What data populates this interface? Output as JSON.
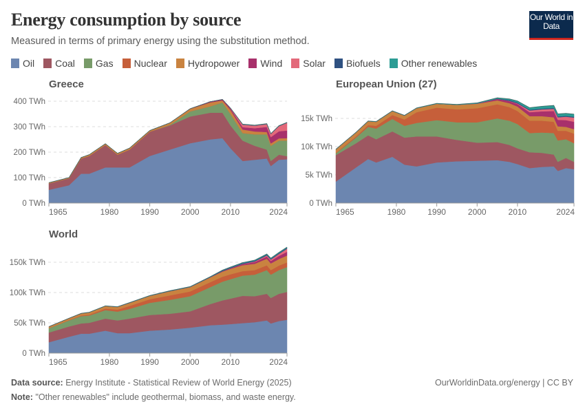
{
  "header": {
    "title": "Energy consumption by source",
    "subtitle": "Measured in terms of primary energy using the substitution method.",
    "logo_text": "Our World in Data"
  },
  "legend": [
    {
      "label": "Oil",
      "color": "#6c86b0"
    },
    {
      "label": "Coal",
      "color": "#9e5761"
    },
    {
      "label": "Gas",
      "color": "#789b69"
    },
    {
      "label": "Nuclear",
      "color": "#c65f3a"
    },
    {
      "label": "Hydropower",
      "color": "#c98340"
    },
    {
      "label": "Wind",
      "color": "#a8306b"
    },
    {
      "label": "Solar",
      "color": "#e3697a"
    },
    {
      "label": "Biofuels",
      "color": "#2f5181"
    },
    {
      "label": "Other renewables",
      "color": "#2c9c94"
    }
  ],
  "chart_data": [
    {
      "type": "area",
      "stacked": true,
      "title": "Greece",
      "x": [
        1965,
        1970,
        1973,
        1975,
        1979,
        1982,
        1985,
        1990,
        1995,
        2000,
        2005,
        2008,
        2010,
        2013,
        2016,
        2019,
        2020,
        2022,
        2024
      ],
      "xticks": [
        "1965",
        "1980",
        "1990",
        "2000",
        "2010",
        "2024"
      ],
      "yticks": [
        {
          "value": 0,
          "label": "0 TWh"
        },
        {
          "value": 100,
          "label": "100 TWh"
        },
        {
          "value": 200,
          "label": "200 TWh"
        },
        {
          "value": 300,
          "label": "300 TWh"
        },
        {
          "value": 400,
          "label": "400 TWh"
        }
      ],
      "ylim": [
        0,
        420
      ],
      "grid": "horizontal-dashed",
      "series": [
        {
          "name": "Oil",
          "values": [
            52,
            70,
            115,
            115,
            140,
            140,
            140,
            185,
            210,
            235,
            250,
            255,
            215,
            165,
            170,
            175,
            145,
            170,
            172
          ]
        },
        {
          "name": "Coal",
          "values": [
            25,
            27,
            60,
            70,
            88,
            50,
            70,
            95,
            95,
            105,
            105,
            100,
            90,
            80,
            55,
            35,
            20,
            20,
            12
          ]
        },
        {
          "name": "Gas",
          "values": [
            0,
            0,
            0,
            0,
            0,
            0,
            0,
            0,
            2,
            20,
            25,
            40,
            45,
            30,
            45,
            60,
            60,
            55,
            62
          ]
        },
        {
          "name": "Nuclear",
          "values": [
            0,
            0,
            0,
            0,
            0,
            0,
            0,
            0,
            0,
            0,
            0,
            0,
            0,
            0,
            0,
            0,
            0,
            0,
            0
          ]
        },
        {
          "name": "Hydropower",
          "values": [
            3,
            3,
            4,
            5,
            5,
            5,
            6,
            5,
            8,
            10,
            15,
            8,
            15,
            14,
            11,
            9,
            9,
            9,
            9
          ]
        },
        {
          "name": "Wind",
          "values": [
            0,
            0,
            0,
            0,
            0,
            0,
            0,
            0,
            0,
            0.5,
            3,
            4,
            6,
            9,
            13,
            20,
            25,
            28,
            30
          ]
        },
        {
          "name": "Solar",
          "values": [
            0,
            0,
            0,
            0,
            0,
            0,
            0,
            0,
            0,
            0,
            0,
            0,
            1,
            10,
            10,
            11,
            12,
            20,
            30
          ]
        },
        {
          "name": "Biofuels",
          "values": [
            0,
            0,
            0,
            0,
            0,
            0,
            0,
            0,
            0,
            0,
            0,
            0,
            1,
            1,
            1,
            1,
            1,
            1,
            1
          ]
        },
        {
          "name": "Other renewables",
          "values": [
            0,
            0,
            0,
            0,
            0,
            0,
            0,
            0,
            0,
            0,
            0,
            0,
            0,
            1,
            1,
            1,
            1,
            1,
            1
          ]
        }
      ]
    },
    {
      "type": "area",
      "stacked": true,
      "title": "European Union (27)",
      "x": [
        1965,
        1970,
        1973,
        1975,
        1979,
        1982,
        1985,
        1990,
        1995,
        2000,
        2005,
        2008,
        2010,
        2013,
        2016,
        2019,
        2020,
        2022,
        2024
      ],
      "xticks": [
        "1965",
        "1980",
        "1990",
        "2000",
        "2010",
        "2024"
      ],
      "yticks": [
        {
          "value": 0,
          "label": "0 TWh"
        },
        {
          "value": 5000,
          "label": "5k TWh"
        },
        {
          "value": 10000,
          "label": "10k TWh"
        },
        {
          "value": 15000,
          "label": "15k TWh"
        }
      ],
      "ylim": [
        0,
        19000
      ],
      "grid": "horizontal-dashed",
      "series": [
        {
          "name": "Oil",
          "values": [
            3800,
            6300,
            7800,
            7200,
            8200,
            6800,
            6500,
            7200,
            7400,
            7500,
            7600,
            7300,
            6900,
            6200,
            6400,
            6500,
            5700,
            6200,
            6000
          ]
        },
        {
          "name": "Coal",
          "values": [
            4700,
            4300,
            4200,
            4100,
            4500,
            4800,
            5300,
            4600,
            3800,
            3200,
            3200,
            3000,
            2800,
            2800,
            2500,
            2100,
            1600,
            1800,
            1300
          ]
        },
        {
          "name": "Gas",
          "values": [
            300,
            1000,
            1500,
            1900,
            2200,
            2100,
            2400,
            2900,
            3100,
            3600,
            4200,
            4300,
            4300,
            3400,
            3600,
            3800,
            3800,
            3300,
            3300
          ]
        },
        {
          "name": "Nuclear",
          "values": [
            100,
            200,
            300,
            500,
            700,
            1100,
            1900,
            2200,
            2300,
            2500,
            2500,
            2400,
            2300,
            2200,
            2100,
            2000,
            1700,
            1500,
            1700
          ]
        },
        {
          "name": "Hydropower",
          "values": [
            600,
            700,
            700,
            700,
            700,
            700,
            700,
            700,
            800,
            800,
            700,
            700,
            800,
            800,
            800,
            800,
            800,
            700,
            800
          ]
        },
        {
          "name": "Wind",
          "values": [
            0,
            0,
            0,
            0,
            0,
            0,
            0,
            0,
            10,
            50,
            250,
            350,
            450,
            700,
            850,
            1100,
            1150,
            1200,
            1300
          ]
        },
        {
          "name": "Solar",
          "values": [
            0,
            0,
            0,
            0,
            0,
            0,
            0,
            0,
            0,
            0,
            5,
            50,
            100,
            300,
            350,
            400,
            450,
            600,
            750
          ]
        },
        {
          "name": "Biofuels",
          "values": [
            0,
            0,
            0,
            0,
            0,
            0,
            0,
            0,
            0,
            0,
            50,
            150,
            150,
            150,
            150,
            150,
            150,
            150,
            150
          ]
        },
        {
          "name": "Other renewables",
          "values": [
            50,
            50,
            50,
            50,
            50,
            50,
            60,
            70,
            80,
            100,
            150,
            200,
            300,
            350,
            400,
            450,
            450,
            450,
            450
          ]
        }
      ]
    },
    {
      "type": "area",
      "stacked": true,
      "title": "World",
      "x": [
        1965,
        1970,
        1973,
        1975,
        1979,
        1982,
        1985,
        1990,
        1995,
        2000,
        2005,
        2008,
        2010,
        2013,
        2016,
        2019,
        2020,
        2022,
        2024
      ],
      "xticks": [
        "1965",
        "1980",
        "1990",
        "2000",
        "2010",
        "2024"
      ],
      "yticks": [
        {
          "value": 0,
          "label": "0 TWh"
        },
        {
          "value": 50000,
          "label": "50k TWh"
        },
        {
          "value": 100000,
          "label": "100k TWh"
        },
        {
          "value": 150000,
          "label": "150k TWh"
        }
      ],
      "ylim": [
        0,
        180000
      ],
      "grid": "horizontal-dashed",
      "series": [
        {
          "name": "Oil",
          "values": [
            18000,
            27000,
            32000,
            32000,
            37000,
            33000,
            33000,
            37000,
            39000,
            42000,
            46000,
            47000,
            48000,
            49500,
            51000,
            54000,
            49000,
            53000,
            55000
          ]
        },
        {
          "name": "Coal",
          "values": [
            16000,
            17000,
            17000,
            18000,
            20000,
            21000,
            24000,
            26000,
            26000,
            27000,
            35000,
            40000,
            42000,
            45000,
            43000,
            44000,
            42000,
            45000,
            46000
          ]
        },
        {
          "name": "Gas",
          "values": [
            7000,
            10000,
            12000,
            12000,
            14000,
            14500,
            16000,
            20000,
            23000,
            25000,
            28000,
            31000,
            32000,
            33500,
            35500,
            39000,
            38500,
            39000,
            41000
          ]
        },
        {
          "name": "Nuclear",
          "values": [
            200,
            500,
            1000,
            1500,
            2500,
            3300,
            5000,
            6000,
            7300,
            7800,
            8200,
            8100,
            8100,
            7300,
            7500,
            8000,
            7600,
            7500,
            7800
          ]
        },
        {
          "name": "Hydropower",
          "values": [
            2500,
            3000,
            3500,
            3700,
            4200,
            4500,
            5000,
            5500,
            7000,
            7200,
            7800,
            8500,
            9000,
            9800,
            10500,
            10800,
            11000,
            10800,
            11200
          ]
        },
        {
          "name": "Wind",
          "values": [
            0,
            0,
            0,
            0,
            0,
            0,
            0,
            10,
            20,
            100,
            300,
            700,
            1100,
            1800,
            2700,
            3600,
            4100,
            5200,
            6300
          ]
        },
        {
          "name": "Solar",
          "values": [
            0,
            0,
            0,
            0,
            0,
            0,
            0,
            0,
            0,
            0,
            5,
            50,
            100,
            400,
            1000,
            1800,
            2200,
            3300,
            5000
          ]
        },
        {
          "name": "Biofuels",
          "values": [
            0,
            0,
            0,
            0,
            50,
            100,
            150,
            200,
            300,
            300,
            500,
            1000,
            1100,
            1200,
            1300,
            1400,
            1300,
            1400,
            1500
          ]
        },
        {
          "name": "Other renewables",
          "values": [
            100,
            150,
            200,
            250,
            300,
            350,
            400,
            450,
            500,
            500,
            600,
            700,
            800,
            900,
            1000,
            1100,
            1100,
            1200,
            1200
          ]
        }
      ]
    }
  ],
  "footer": {
    "source_label": "Data source:",
    "source_text": "Energy Institute - Statistical Review of World Energy (2025)",
    "url_license": "OurWorldinData.org/energy | CC BY",
    "note_label": "Note:",
    "note_text": "\"Other renewables\" include geothermal, biomass, and waste energy."
  }
}
